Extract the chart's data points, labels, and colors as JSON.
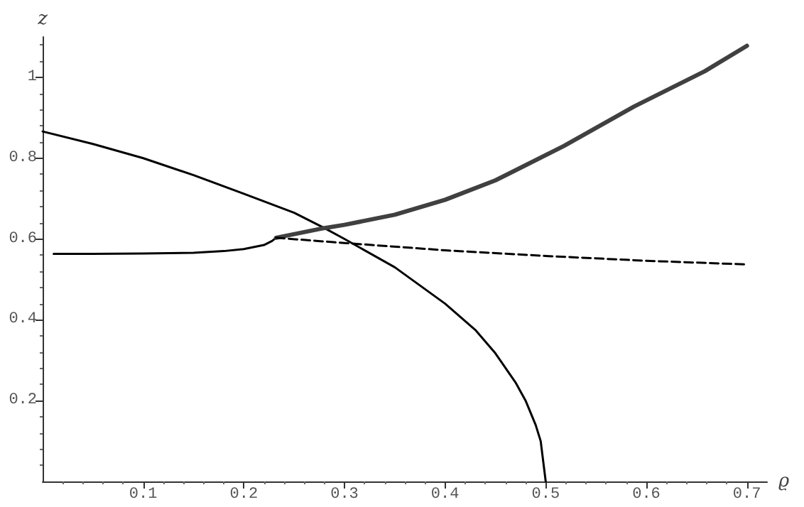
{
  "chart_data": {
    "type": "line",
    "xlabel": "ϱ",
    "ylabel": "z",
    "xlim": [
      0,
      0.72
    ],
    "ylim": [
      0,
      1.1
    ],
    "xticks": [
      0.1,
      0.2,
      0.3,
      0.4,
      0.5,
      0.6,
      0.7
    ],
    "yticks": [
      0.2,
      0.4,
      0.6,
      0.8,
      1
    ],
    "grid": false,
    "marker": "none",
    "series": [
      {
        "color": "#000000",
        "x": [
          0,
          0.05,
          0.1,
          0.15,
          0.2,
          0.25,
          0.28,
          0.3,
          0.35,
          0.4,
          0.43,
          0.45,
          0.47,
          0.48,
          0.49,
          0.495,
          0.5
        ],
        "values": [
          0.866,
          0.835,
          0.8,
          0.758,
          0.712,
          0.665,
          0.627,
          0.6,
          0.53,
          0.44,
          0.375,
          0.317,
          0.245,
          0.2,
          0.14,
          0.1,
          0
        ]
      },
      {
        "color": "#000000",
        "x": [
          0.011,
          0.05,
          0.1,
          0.15,
          0.18,
          0.2,
          0.22,
          0.228,
          0.232
        ],
        "values": [
          0.563,
          0.563,
          0.564,
          0.566,
          0.57,
          0.575,
          0.585,
          0.595,
          0.603
        ]
      },
      {
        "color": "#404040",
        "x": [
          0.232,
          0.28,
          0.3,
          0.35,
          0.4,
          0.45,
          0.462,
          0.518,
          0.588,
          0.658,
          0.7
        ],
        "values": [
          0.603,
          0.627,
          0.635,
          0.66,
          0.697,
          0.745,
          0.76,
          0.83,
          0.928,
          1.015,
          1.078
        ]
      },
      {
        "color": "#000000",
        "line_style": "dashed",
        "x": [
          0.232,
          0.3,
          0.4,
          0.5,
          0.6,
          0.7
        ],
        "values": [
          0.603,
          0.59,
          0.572,
          0.558,
          0.546,
          0.537
        ]
      }
    ]
  }
}
